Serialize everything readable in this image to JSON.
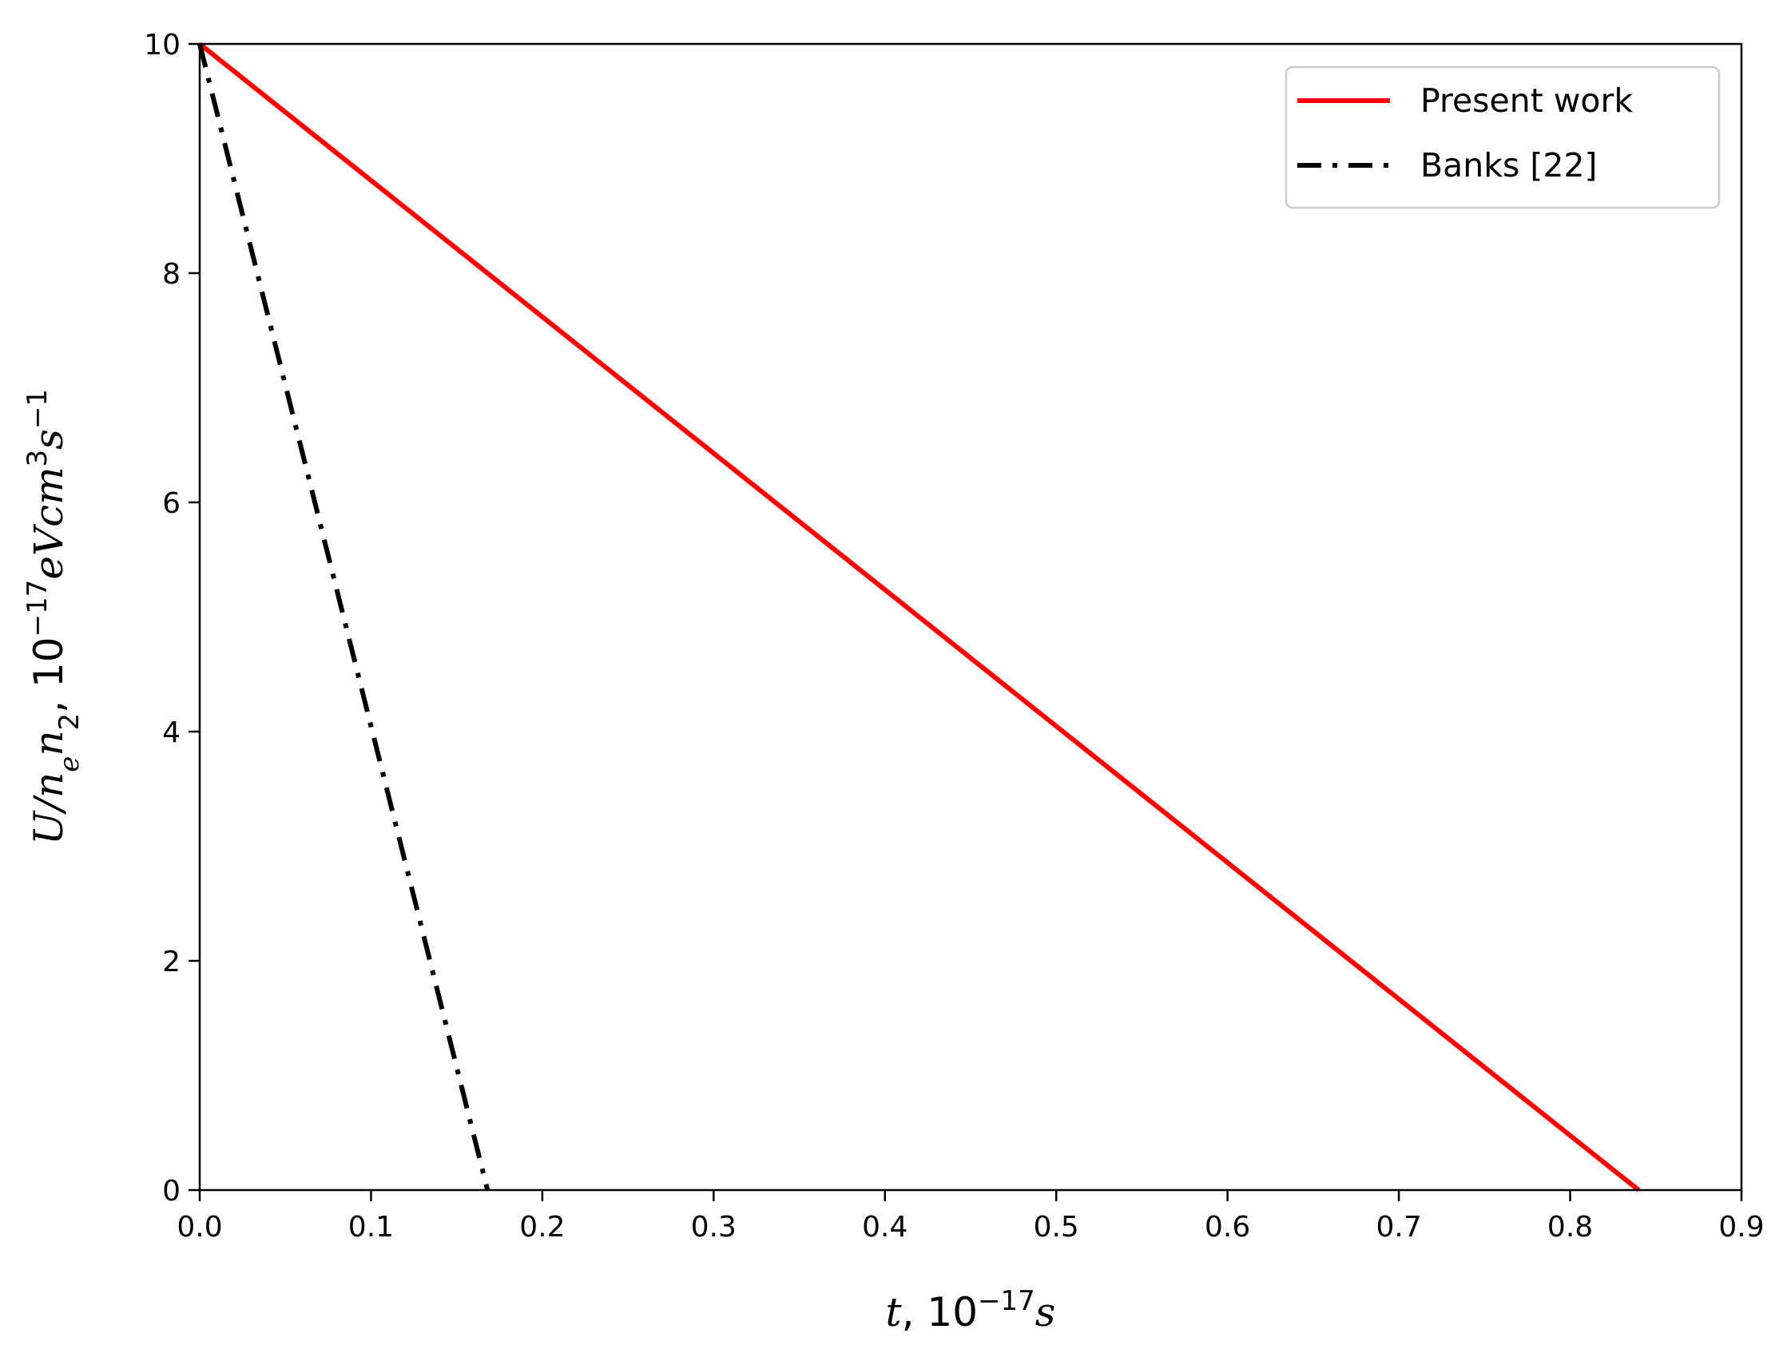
{
  "chart_data": {
    "type": "line",
    "title": "",
    "xlabel": {
      "pre": "t",
      "sep": ", ",
      "base": "10",
      "exp": "−17",
      "unit": "s"
    },
    "ylabel": {
      "pre": "U/n",
      "sub1": "e",
      "mid": "n",
      "sub2": "2",
      "sep": ", ",
      "base": "10",
      "exp1": "−17",
      "unit1": "eVcm",
      "exp2": "3",
      "unit2": "s",
      "exp3": "−1"
    },
    "xlim": [
      0.0,
      0.9
    ],
    "ylim": [
      0,
      10
    ],
    "xticks": [
      "0.0",
      "0.1",
      "0.2",
      "0.3",
      "0.4",
      "0.5",
      "0.6",
      "0.7",
      "0.8",
      "0.9"
    ],
    "yticks": [
      "0",
      "2",
      "4",
      "6",
      "8",
      "10"
    ],
    "grid": false,
    "legend_position": "top-right",
    "series": [
      {
        "name": "Present work",
        "color": "#ff0000",
        "style": "solid",
        "x": [
          0.0,
          0.84
        ],
        "y": [
          10,
          0
        ]
      },
      {
        "name": "Banks [22]",
        "color": "#000000",
        "style": "dash-dot",
        "x": [
          0.0,
          0.168
        ],
        "y": [
          10,
          0
        ]
      }
    ]
  }
}
